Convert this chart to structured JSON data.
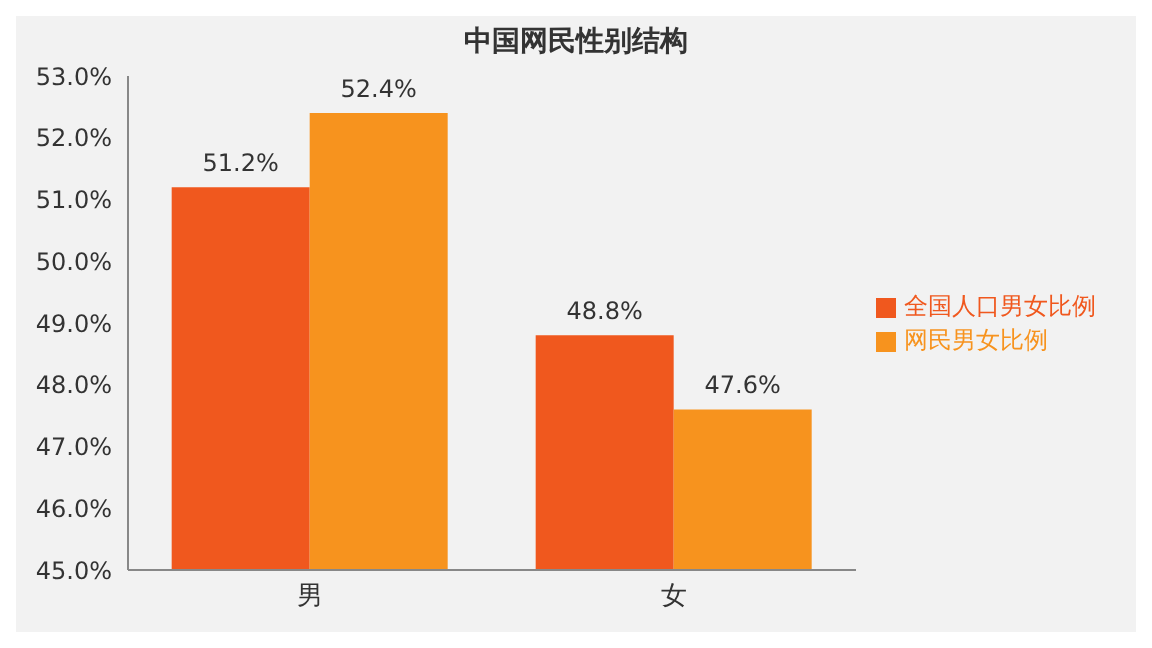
{
  "chart_data": {
    "type": "bar",
    "title": "中国网民性别结构",
    "categories": [
      "男",
      "女"
    ],
    "series": [
      {
        "name": "全国人口男女比例",
        "color": "#f0581e",
        "values": [
          51.2,
          48.8
        ],
        "value_labels": [
          "51.2%",
          "48.8%"
        ]
      },
      {
        "name": "网民男女比例",
        "color": "#f7931e",
        "values": [
          52.4,
          47.6
        ],
        "value_labels": [
          "52.4%",
          "47.6%"
        ]
      }
    ],
    "ylim": [
      45,
      53
    ],
    "yticks": [
      {
        "value": 45,
        "label": "45.0%"
      },
      {
        "value": 46,
        "label": "46.0%"
      },
      {
        "value": 47,
        "label": "47.0%"
      },
      {
        "value": 48,
        "label": "48.0%"
      },
      {
        "value": 49,
        "label": "49.0%"
      },
      {
        "value": 50,
        "label": "50.0%"
      },
      {
        "value": 51,
        "label": "51.0%"
      },
      {
        "value": 52,
        "label": "52.0%"
      },
      {
        "value": 53,
        "label": "53.0%"
      }
    ],
    "grid": false,
    "legend": "right"
  }
}
